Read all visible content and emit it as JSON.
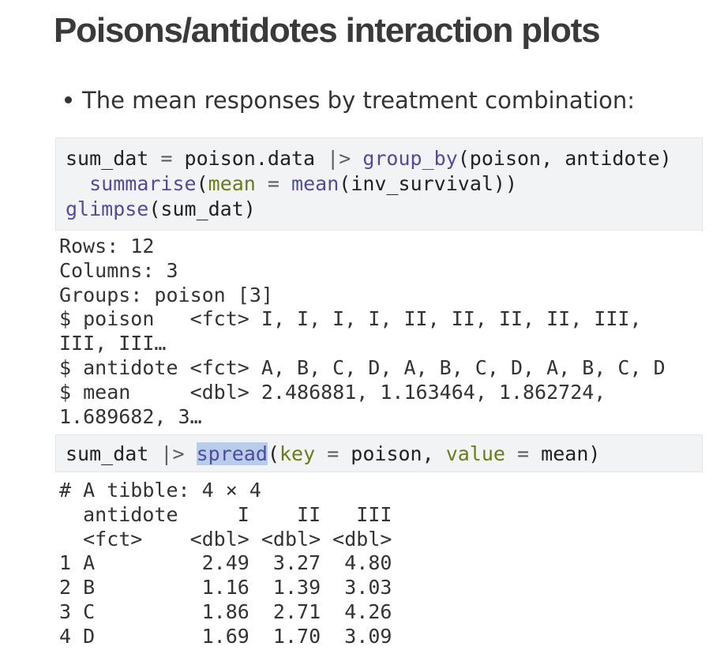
{
  "title": "Poisons/antidotes interaction plots",
  "bullet": "The mean responses by treatment combination:",
  "sections": [
    {
      "code": [
        "sum_dat = poison.data |> group_by(poison, antidote)",
        "  summarise(mean = mean(inv_survival))",
        "glimpse(sum_dat)"
      ],
      "output": [
        "Rows: 12",
        "Columns: 3",
        "Groups: poison [3]",
        "$ poison   <fct> I, I, I, I, II, II, II, II, III,",
        "III, III…",
        "$ antidote <fct> A, B, C, D, A, B, C, D, A, B, C, D",
        "$ mean     <dbl> 2.486881, 1.163464, 1.862724,",
        "1.689682, 3…"
      ]
    },
    {
      "code": [
        "sum_dat |> spread(key = poison, value = mean)"
      ],
      "output": [
        "# A tibble: 4 × 4",
        "  antidote     I    II   III",
        "  <fct>    <dbl> <dbl> <dbl>",
        "1 A         2.49  3.27  4.80",
        "2 B         1.16  1.39  3.03",
        "3 C         1.86  2.71  4.26",
        "4 D         1.69  1.70  3.09"
      ]
    }
  ]
}
